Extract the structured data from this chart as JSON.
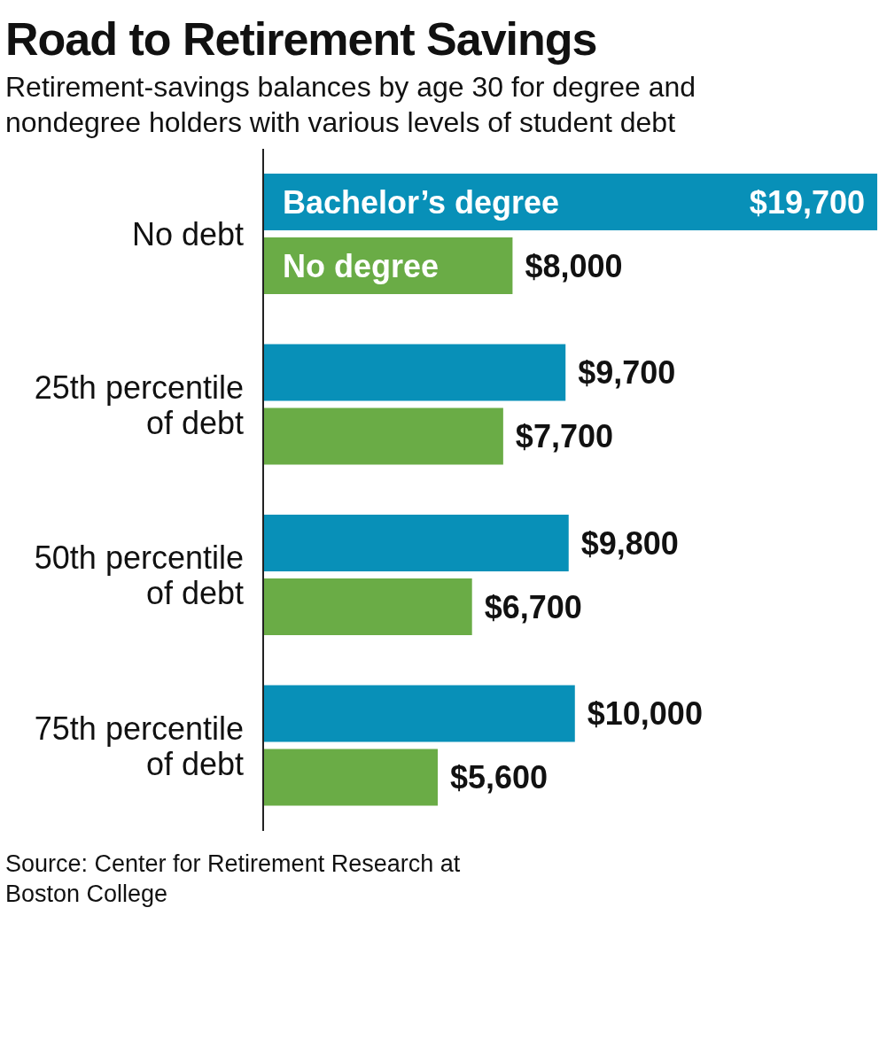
{
  "chart_data": {
    "type": "bar",
    "orientation": "horizontal",
    "title": "Road to Retirement Savings",
    "subtitle": "Retirement-savings balances by age 30 for degree and nondegree holders with various levels of student debt",
    "categories": [
      "No debt",
      "25th percentile of debt",
      "50th percentile of debt",
      "75th percentile of debt"
    ],
    "series": [
      {
        "name": "Bachelor’s degree",
        "color": "#0890b8",
        "values": [
          19700,
          9700,
          9800,
          10000
        ],
        "value_labels": [
          "$19,700",
          "$9,700",
          "$9,800",
          "$10,000"
        ]
      },
      {
        "name": "No degree",
        "color": "#6aac46",
        "values": [
          8000,
          7700,
          6700,
          5600
        ],
        "value_labels": [
          "$8,000",
          "$7,700",
          "$6,700",
          "$5,600"
        ]
      }
    ],
    "annotations": [
      "Source: Center for Retirement Research at Boston College"
    ]
  }
}
